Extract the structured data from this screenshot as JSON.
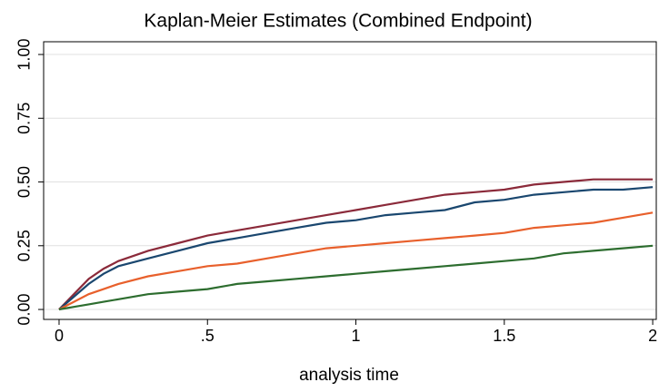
{
  "chart_data": {
    "type": "line",
    "title": "Kaplan-Meier Estimates (Combined Endpoint)",
    "x_label": "analysis time",
    "x": [
      0,
      0.05,
      0.1,
      0.15,
      0.2,
      0.3,
      0.4,
      0.5,
      0.6,
      0.7,
      0.8,
      0.9,
      1.0,
      1.1,
      1.2,
      1.3,
      1.4,
      1.5,
      1.6,
      1.7,
      1.8,
      1.9,
      2.0
    ],
    "series": [
      {
        "color": "#8b2a3a",
        "values": [
          0,
          0.06,
          0.12,
          0.16,
          0.19,
          0.23,
          0.26,
          0.29,
          0.31,
          0.33,
          0.35,
          0.37,
          0.39,
          0.41,
          0.43,
          0.45,
          0.46,
          0.47,
          0.49,
          0.5,
          0.51,
          0.51,
          0.51
        ]
      },
      {
        "color": "#1a476f",
        "values": [
          0,
          0.05,
          0.1,
          0.14,
          0.17,
          0.2,
          0.23,
          0.26,
          0.28,
          0.3,
          0.32,
          0.34,
          0.35,
          0.37,
          0.38,
          0.39,
          0.42,
          0.43,
          0.45,
          0.46,
          0.47,
          0.47,
          0.48
        ]
      },
      {
        "color": "#e8602c",
        "values": [
          0,
          0.03,
          0.06,
          0.08,
          0.1,
          0.13,
          0.15,
          0.17,
          0.18,
          0.2,
          0.22,
          0.24,
          0.25,
          0.26,
          0.27,
          0.28,
          0.29,
          0.3,
          0.32,
          0.33,
          0.34,
          0.36,
          0.38
        ]
      },
      {
        "color": "#2d6d2f",
        "values": [
          0,
          0.01,
          0.02,
          0.03,
          0.04,
          0.06,
          0.07,
          0.08,
          0.1,
          0.11,
          0.12,
          0.13,
          0.14,
          0.15,
          0.16,
          0.17,
          0.18,
          0.19,
          0.2,
          0.22,
          0.23,
          0.24,
          0.25
        ]
      }
    ],
    "xlim": [
      -0.052,
      2.012
    ],
    "ylim": [
      -0.039,
      1.05
    ],
    "xticks": [
      0,
      {
        "value": 0.5,
        "label": ".5"
      },
      1,
      1.5,
      2
    ],
    "yticks": [
      {
        "value": 0,
        "label": "0.00"
      },
      {
        "value": 0.25,
        "label": "0.25"
      },
      {
        "value": 0.5,
        "label": "0.50"
      },
      {
        "value": 0.75,
        "label": "0.75"
      },
      {
        "value": 1,
        "label": "1.00"
      }
    ],
    "grid": true
  }
}
